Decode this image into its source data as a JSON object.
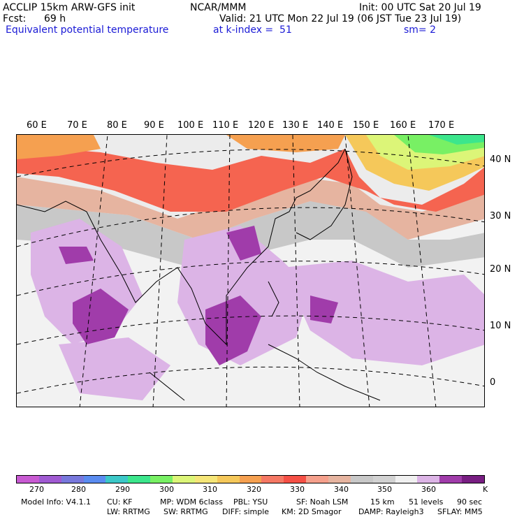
{
  "header": {
    "model_title": "ACCLIP 15km ARW-GFS init",
    "org": "NCAR/MMM",
    "init_time": "Init: 00 UTC Sat 20 Jul 19",
    "forecast_label": "Fcst:",
    "forecast_hours": "69 h",
    "valid_time": "Valid: 21 UTC Mon 22 Jul 19 (06 JST Tue 23 Jul 19)",
    "field_name": "Equivalent potential temperature",
    "level": "at k-index =  51",
    "smoothing": "sm= 2"
  },
  "map": {
    "longitude_labels": [
      "60 E",
      "70 E",
      "80 E",
      "90 E",
      "100 E",
      "110 E",
      "120 E",
      "130 E",
      "140 E",
      "150 E",
      "160 E",
      "170 E"
    ],
    "latitude_labels": [
      "40 N",
      "30 N",
      "20 N",
      "10 N",
      "0"
    ]
  },
  "colorbar": {
    "colors": [
      "#c85ad2",
      "#a05ad2",
      "#7878dc",
      "#5a8cf0",
      "#3cc8c8",
      "#3ce68c",
      "#78f064",
      "#dcf578",
      "#f5e678",
      "#f5c85a",
      "#f5a050",
      "#f57864",
      "#f55046",
      "#f5a08c",
      "#e6b4a0",
      "#c8c8c8",
      "#d2d2d2",
      "#f0f0f0",
      "#dcb4e6",
      "#a03caa",
      "#781e82"
    ],
    "tick_labels": [
      "270",
      "280",
      "290",
      "300",
      "310",
      "320",
      "330",
      "340",
      "350",
      "360"
    ],
    "unit": "K"
  },
  "footer": {
    "line1": [
      "Model Info: V4.1.1",
      "CU: KF",
      "MP: WDM 6class",
      "PBL: YSU",
      "SF: Noah LSM",
      "15 km",
      "51 levels",
      "90 sec"
    ],
    "line2": [
      "LW: RRTMG",
      "SW: RRTMG",
      "DIFF: simple",
      "KM: 2D Smagor",
      "DAMP: Rayleigh3",
      "SFLAY: MM5"
    ]
  }
}
